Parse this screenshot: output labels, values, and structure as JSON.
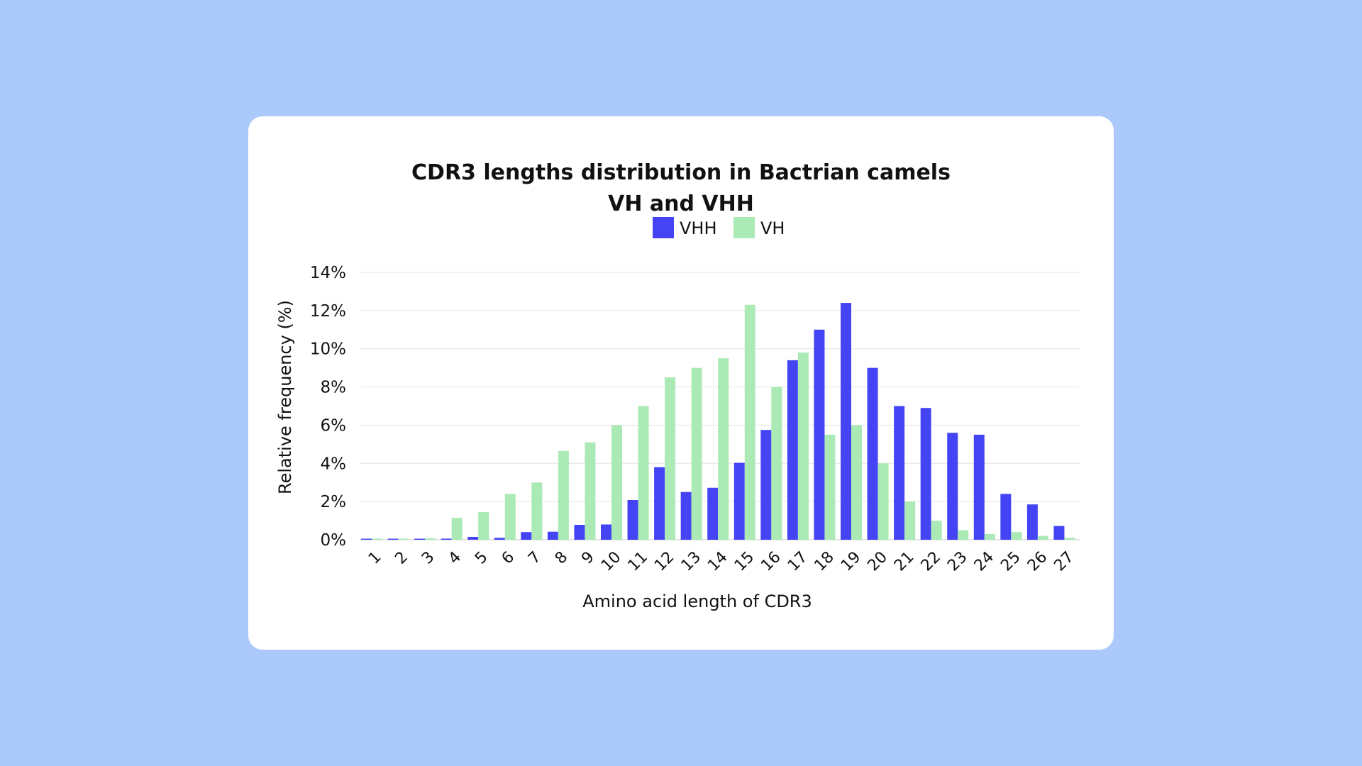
{
  "chart_data": {
    "type": "bar",
    "title": "CDR3 lengths distribution in Bactrian camels",
    "subtitle": "VH and VHH",
    "xlabel": "Amino acid length of CDR3",
    "ylabel": "Relative frequency (%)",
    "ylim": [
      0,
      14
    ],
    "yticks": [
      "0%",
      "2%",
      "4%",
      "6%",
      "8%",
      "10%",
      "12%",
      "14%"
    ],
    "grid": true,
    "legend_placement": "top-center",
    "categories": [
      "1",
      "2",
      "3",
      "4",
      "5",
      "6",
      "7",
      "8",
      "9",
      "10",
      "11",
      "12",
      "13",
      "14",
      "15",
      "16",
      "17",
      "18",
      "19",
      "20",
      "21",
      "22",
      "23",
      "24",
      "25",
      "26",
      "27"
    ],
    "series": [
      {
        "name": "VHH",
        "color": "#4444f5",
        "values": [
          0.0,
          0.03,
          0.04,
          0.06,
          0.15,
          0.1,
          0.4,
          0.42,
          0.78,
          0.8,
          2.08,
          3.8,
          2.5,
          2.72,
          4.03,
          5.75,
          9.4,
          11.0,
          12.4,
          9.0,
          7.0,
          6.9,
          5.6,
          5.5,
          2.4,
          1.85,
          0.72
        ]
      },
      {
        "name": "VH",
        "color": "#abeab5",
        "values": [
          0.0,
          0.02,
          0.08,
          1.15,
          1.45,
          2.4,
          3.0,
          4.65,
          5.1,
          6.0,
          7.0,
          8.5,
          9.0,
          9.5,
          12.3,
          8.0,
          9.8,
          5.5,
          6.0,
          4.0,
          2.0,
          1.0,
          0.5,
          0.3,
          0.4,
          0.2,
          0.1
        ]
      }
    ]
  }
}
